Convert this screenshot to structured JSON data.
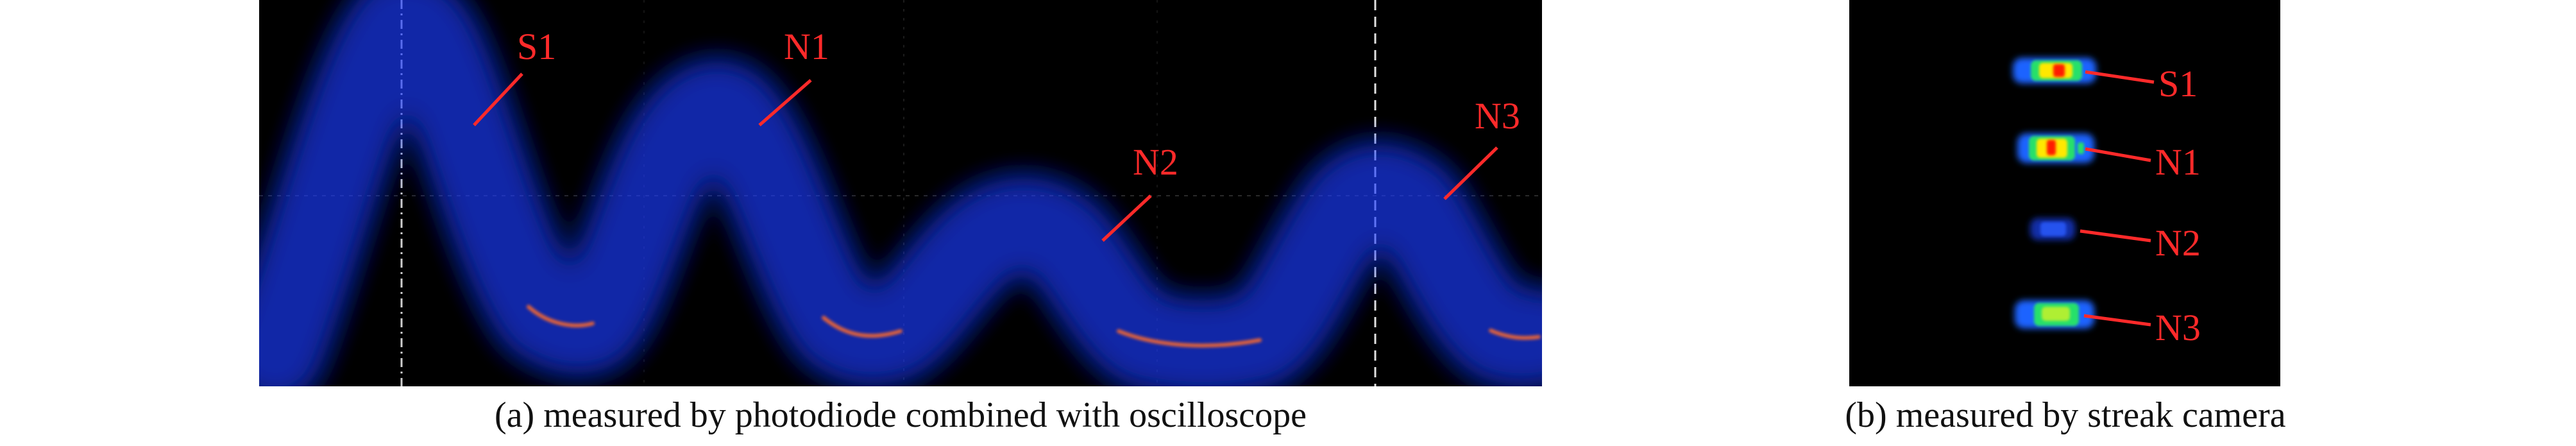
{
  "panel_a": {
    "caption": "(a) measured by photodiode combined with oscilloscope",
    "pulse_labels": [
      "S1",
      "N1",
      "N2",
      "N3"
    ]
  },
  "panel_b": {
    "caption": "(b) measured by streak camera",
    "spot_labels": [
      "S1",
      "N1",
      "N2",
      "N3"
    ]
  },
  "colors": {
    "background": "#000000",
    "trace_glow": "#1f4fff",
    "trace_core": "#7fd8ff",
    "trace_trough": "#ff6a2a",
    "label": "#ff2a2a",
    "spot_outer": "#1e64ff",
    "spot_mid": "#25e06a",
    "spot_inner": "#ffe800",
    "spot_hot": "#ff1a00"
  }
}
